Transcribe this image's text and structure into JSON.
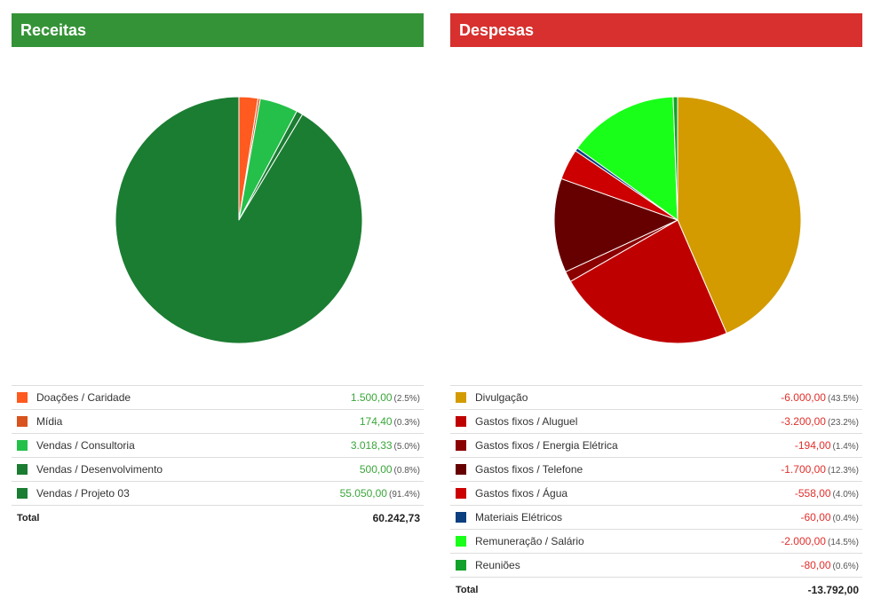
{
  "receitas": {
    "title": "Receitas",
    "total_label": "Total",
    "total_value": "60.242,73",
    "items": [
      {
        "label": "Doações / Caridade",
        "amount": "1.500,00",
        "pct": "(2.5%)",
        "color": "#ff5a1f"
      },
      {
        "label": "Mídia",
        "amount": "174,40",
        "pct": "(0.3%)",
        "color": "#d9531e"
      },
      {
        "label": "Vendas / Consultoria",
        "amount": "3.018,33",
        "pct": "(5.0%)",
        "color": "#25c04a"
      },
      {
        "label": "Vendas / Desenvolvimento",
        "amount": "500,00",
        "pct": "(0.8%)",
        "color": "#1b7d32"
      },
      {
        "label": "Vendas / Projeto 03",
        "amount": "55.050,00",
        "pct": "(91.4%)",
        "color": "#1b7d32"
      }
    ]
  },
  "despesas": {
    "title": "Despesas",
    "total_label": "Total",
    "total_value": "-13.792,00",
    "items": [
      {
        "label": "Divulgação",
        "amount": "-6.000,00",
        "pct": "(43.5%)",
        "color": "#d39b00"
      },
      {
        "label": "Gastos fixos / Aluguel",
        "amount": "-3.200,00",
        "pct": "(23.2%)",
        "color": "#bf0000"
      },
      {
        "label": "Gastos fixos / Energia Elétrica",
        "amount": "-194,00",
        "pct": "(1.4%)",
        "color": "#8b0000"
      },
      {
        "label": "Gastos fixos / Telefone",
        "amount": "-1.700,00",
        "pct": "(12.3%)",
        "color": "#660000"
      },
      {
        "label": "Gastos fixos / Água",
        "amount": "-558,00",
        "pct": "(4.0%)",
        "color": "#cc0000"
      },
      {
        "label": "Materiais Elétricos",
        "amount": "-60,00",
        "pct": "(0.4%)",
        "color": "#0b3f7f"
      },
      {
        "label": "Remuneração / Salário",
        "amount": "-2.000,00",
        "pct": "(14.5%)",
        "color": "#19ff19"
      },
      {
        "label": "Reuniões",
        "amount": "-80,00",
        "pct": "(0.6%)",
        "color": "#12a12a"
      }
    ]
  },
  "chart_data": [
    {
      "type": "pie",
      "title": "Receitas",
      "categories": [
        "Doações / Caridade",
        "Mídia",
        "Vendas / Consultoria",
        "Vendas / Desenvolvimento",
        "Vendas / Projeto 03"
      ],
      "values": [
        1500.0,
        174.4,
        3018.33,
        500.0,
        55050.0
      ],
      "colors": [
        "#ff5a1f",
        "#d9531e",
        "#25c04a",
        "#1b7d32",
        "#1b7d32"
      ]
    },
    {
      "type": "pie",
      "title": "Despesas",
      "categories": [
        "Divulgação",
        "Gastos fixos / Aluguel",
        "Gastos fixos / Energia Elétrica",
        "Gastos fixos / Telefone",
        "Gastos fixos / Água",
        "Materiais Elétricos",
        "Remuneração / Salário",
        "Reuniões"
      ],
      "values": [
        6000.0,
        3200.0,
        194.0,
        1700.0,
        558.0,
        60.0,
        2000.0,
        80.0
      ],
      "colors": [
        "#d39b00",
        "#bf0000",
        "#8b0000",
        "#660000",
        "#cc0000",
        "#0b3f7f",
        "#19ff19",
        "#12a12a"
      ]
    }
  ]
}
